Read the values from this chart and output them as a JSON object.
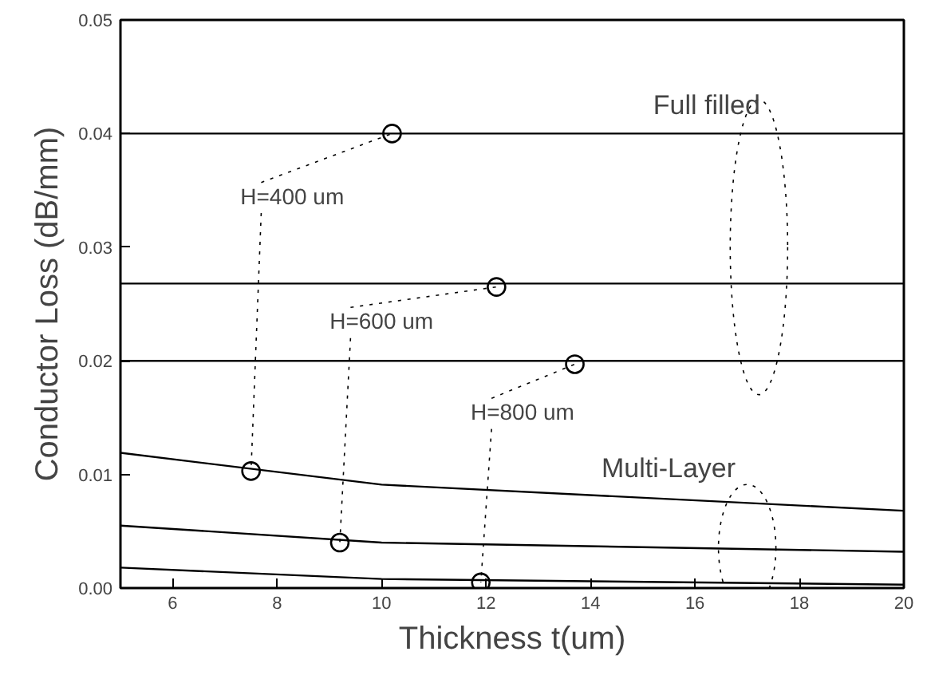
{
  "chart_data": {
    "type": "line",
    "xlabel": "Thickness t(um)",
    "ylabel": "Conductor Loss (dB/mm)",
    "xlim": [
      5,
      20
    ],
    "ylim": [
      0,
      0.05
    ],
    "xticks": [
      6,
      8,
      10,
      12,
      14,
      16,
      18,
      20
    ],
    "yticks": [
      {
        "value": 0,
        "label": "0.00"
      },
      {
        "value": 0.01,
        "label": "0.01"
      },
      {
        "value": 0.02,
        "label": "0.02"
      },
      {
        "value": 0.03,
        "label": "0.03"
      },
      {
        "value": 0.04,
        "label": "0.04"
      },
      {
        "value": 0.05,
        "label": "0.05"
      }
    ],
    "grid": false,
    "line_style": "solid",
    "series": [
      {
        "color": "#000000",
        "x": [
          5,
          20
        ],
        "values": [
          0.04,
          0.04
        ]
      },
      {
        "color": "#000000",
        "x": [
          5,
          20
        ],
        "values": [
          0.0268,
          0.0268
        ]
      },
      {
        "color": "#000000",
        "x": [
          5,
          20
        ],
        "values": [
          0.02,
          0.02
        ]
      },
      {
        "color": "#000000",
        "x": [
          5,
          10,
          20
        ],
        "values": [
          0.0119,
          0.0091,
          0.0068
        ]
      },
      {
        "color": "#000000",
        "x": [
          5,
          10,
          20
        ],
        "values": [
          0.0055,
          0.004,
          0.0032
        ]
      },
      {
        "color": "#000000",
        "x": [
          5,
          10,
          20
        ],
        "values": [
          0.0018,
          0.0008,
          0.0003
        ]
      },
      {
        "type": "scatter",
        "marker": "circle",
        "color": "#000000",
        "x": [
          10.2,
          12.2,
          13.7,
          7.5,
          9.2,
          11.9
        ],
        "values": [
          0.04,
          0.0265,
          0.0197,
          0.0103,
          0.004,
          0.0005
        ]
      }
    ],
    "annotations": [
      {
        "text": "H=400 um",
        "x": 10.2,
        "y": 0.04
      },
      {
        "text": "H=600 um",
        "x": 12.2,
        "y": 0.0265
      },
      {
        "text": "H=800 um",
        "x": 13.7,
        "y": 0.0197
      },
      "Full filled",
      "Multi-Layer"
    ]
  }
}
